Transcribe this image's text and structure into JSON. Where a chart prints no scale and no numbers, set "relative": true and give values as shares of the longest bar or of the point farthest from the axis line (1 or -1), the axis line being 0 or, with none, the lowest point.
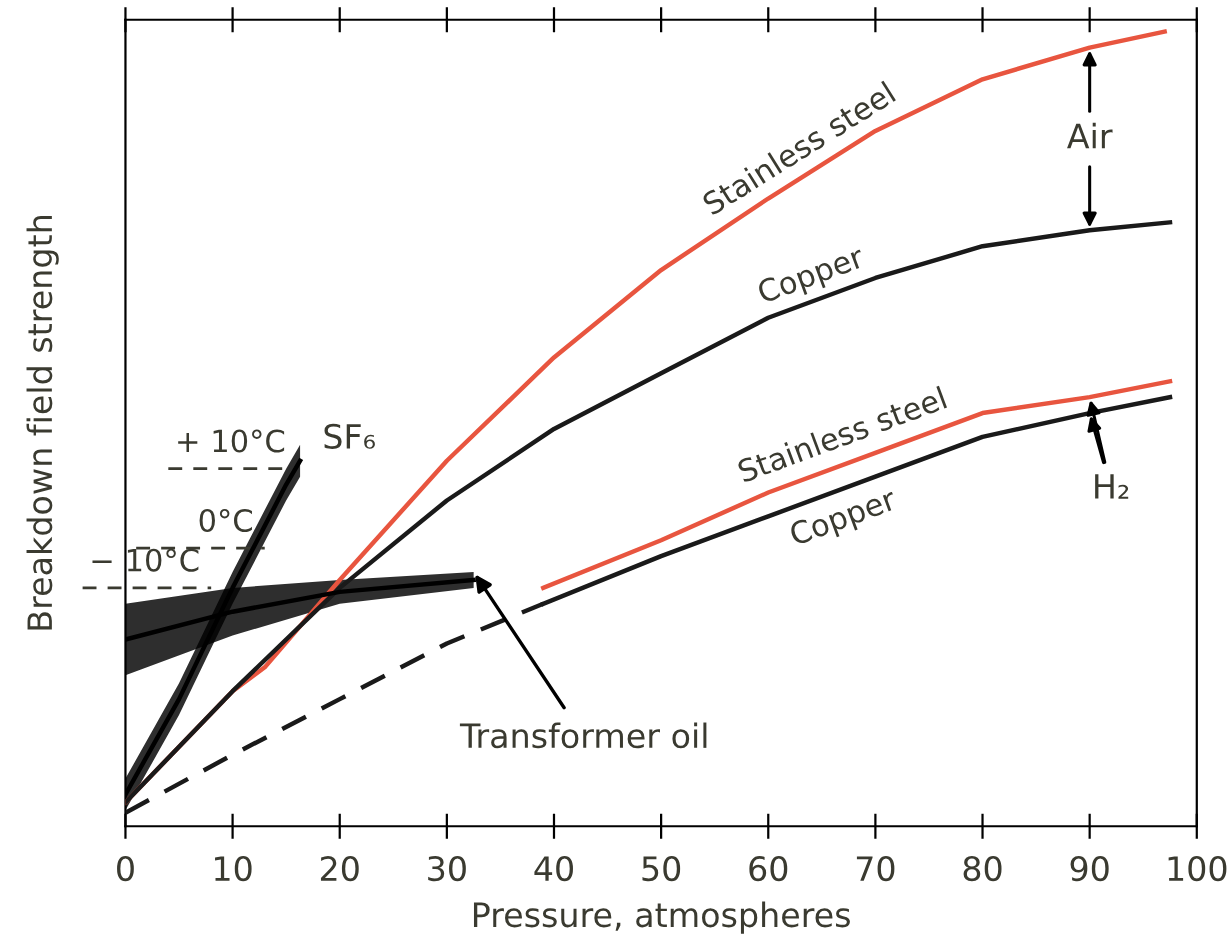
{
  "chart_data": {
    "type": "line",
    "relative": true,
    "xlabel": "Pressure, atmospheres",
    "ylabel": "Breakdown field strength",
    "xlim": [
      0,
      100
    ],
    "xticks": [
      0,
      10,
      20,
      30,
      40,
      50,
      60,
      70,
      80,
      90,
      100
    ],
    "grid": false,
    "legend": false,
    "tick_labels": "x",
    "series": [
      {
        "name": "Stainless steel",
        "color": "#e8553f",
        "x": [
          0,
          10,
          13,
          20,
          30,
          40,
          50,
          60,
          70,
          80,
          90,
          97
        ],
        "values": [
          0.03,
          0.17,
          0.2,
          0.31,
          0.46,
          0.59,
          0.7,
          0.79,
          0.875,
          0.94,
          0.98,
          1.0
        ]
      },
      {
        "name": "Copper",
        "color": "#1a1a1a",
        "x": [
          0,
          10,
          20,
          30,
          40,
          50,
          60,
          70,
          80,
          90,
          97.5
        ],
        "values": [
          0.03,
          0.17,
          0.3,
          0.41,
          0.5,
          0.57,
          0.64,
          0.69,
          0.73,
          0.75,
          0.76
        ]
      },
      {
        "name": "Stainless steel",
        "color": "#e8553f",
        "x": [
          39,
          50,
          60,
          70,
          80,
          90,
          97.5
        ],
        "values": [
          0.3,
          0.36,
          0.42,
          0.47,
          0.52,
          0.54,
          0.56
        ]
      },
      {
        "name": "Copper",
        "color": "#1a1a1a",
        "x": [
          39,
          50,
          60,
          70,
          80,
          90,
          97.5
        ],
        "values": [
          0.28,
          0.34,
          0.39,
          0.44,
          0.49,
          0.52,
          0.54
        ]
      },
      {
        "color": "#1a1a1a",
        "line_style": "dashed",
        "x": [
          0,
          10,
          20,
          30,
          39
        ],
        "values": [
          0.017,
          0.09,
          0.16,
          0.23,
          0.28
        ]
      },
      {
        "name": "SF₆",
        "color": "#000000",
        "x": [
          0,
          5,
          10,
          15,
          16.3
        ],
        "values": [
          0.04,
          0.16,
          0.3,
          0.43,
          0.46
        ],
        "lower": [
          0.02,
          0.14,
          0.28,
          0.41,
          0.44
        ],
        "upper": [
          0.06,
          0.18,
          0.32,
          0.45,
          0.48
        ]
      },
      {
        "name": "Transformer oil",
        "color": "#000000",
        "x": [
          0,
          10,
          20,
          32.5
        ],
        "values": [
          0.235,
          0.27,
          0.295,
          0.31
        ],
        "lower": [
          0.19,
          0.24,
          0.28,
          0.3
        ],
        "upper": [
          0.28,
          0.3,
          0.31,
          0.32
        ]
      }
    ],
    "annotations": [
      "Air",
      "H₂",
      {
        "text": "+ 10°C",
        "x": 16,
        "y": 0.45
      },
      {
        "text": "0°C",
        "x": 13,
        "y": 0.35
      },
      {
        "text": "− 10°C",
        "x": 8,
        "y": 0.3
      }
    ]
  }
}
